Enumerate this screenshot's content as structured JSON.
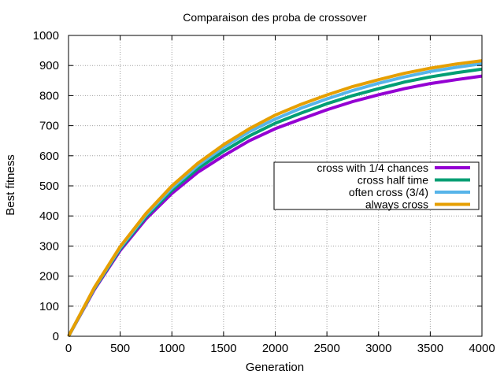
{
  "chart_data": {
    "type": "line",
    "title": "Comparaison des proba de crossover",
    "xlabel": "Generation",
    "ylabel": "Best fitness",
    "xlim": [
      0,
      4000
    ],
    "ylim": [
      0,
      1000
    ],
    "xticks": [
      0,
      500,
      1000,
      1500,
      2000,
      2500,
      3000,
      3500,
      4000
    ],
    "yticks": [
      0,
      100,
      200,
      300,
      400,
      500,
      600,
      700,
      800,
      900,
      1000
    ],
    "grid": true,
    "legend_position": "right-center",
    "x": [
      0,
      250,
      500,
      750,
      1000,
      1250,
      1500,
      1750,
      2000,
      2250,
      2500,
      2750,
      3000,
      3250,
      3500,
      3750,
      4000
    ],
    "series": [
      {
        "name": "cross with 1/4 chances",
        "color": "#9400d3",
        "values": [
          0,
          155,
          285,
          390,
          475,
          545,
          600,
          650,
          690,
          722,
          753,
          780,
          803,
          823,
          840,
          853,
          865
        ]
      },
      {
        "name": "cross half time",
        "color": "#009e73",
        "values": [
          0,
          158,
          290,
          397,
          485,
          557,
          615,
          666,
          708,
          742,
          773,
          800,
          823,
          845,
          862,
          876,
          888
        ]
      },
      {
        "name": "often cross (3/4)",
        "color": "#56b4e9",
        "values": [
          0,
          160,
          294,
          403,
          493,
          567,
          628,
          680,
          722,
          758,
          789,
          817,
          841,
          862,
          880,
          894,
          906
        ]
      },
      {
        "name": "always cross",
        "color": "#e69f00",
        "values": [
          0,
          162,
          298,
          408,
          500,
          575,
          637,
          690,
          735,
          771,
          802,
          830,
          853,
          874,
          891,
          905,
          916
        ]
      }
    ]
  }
}
